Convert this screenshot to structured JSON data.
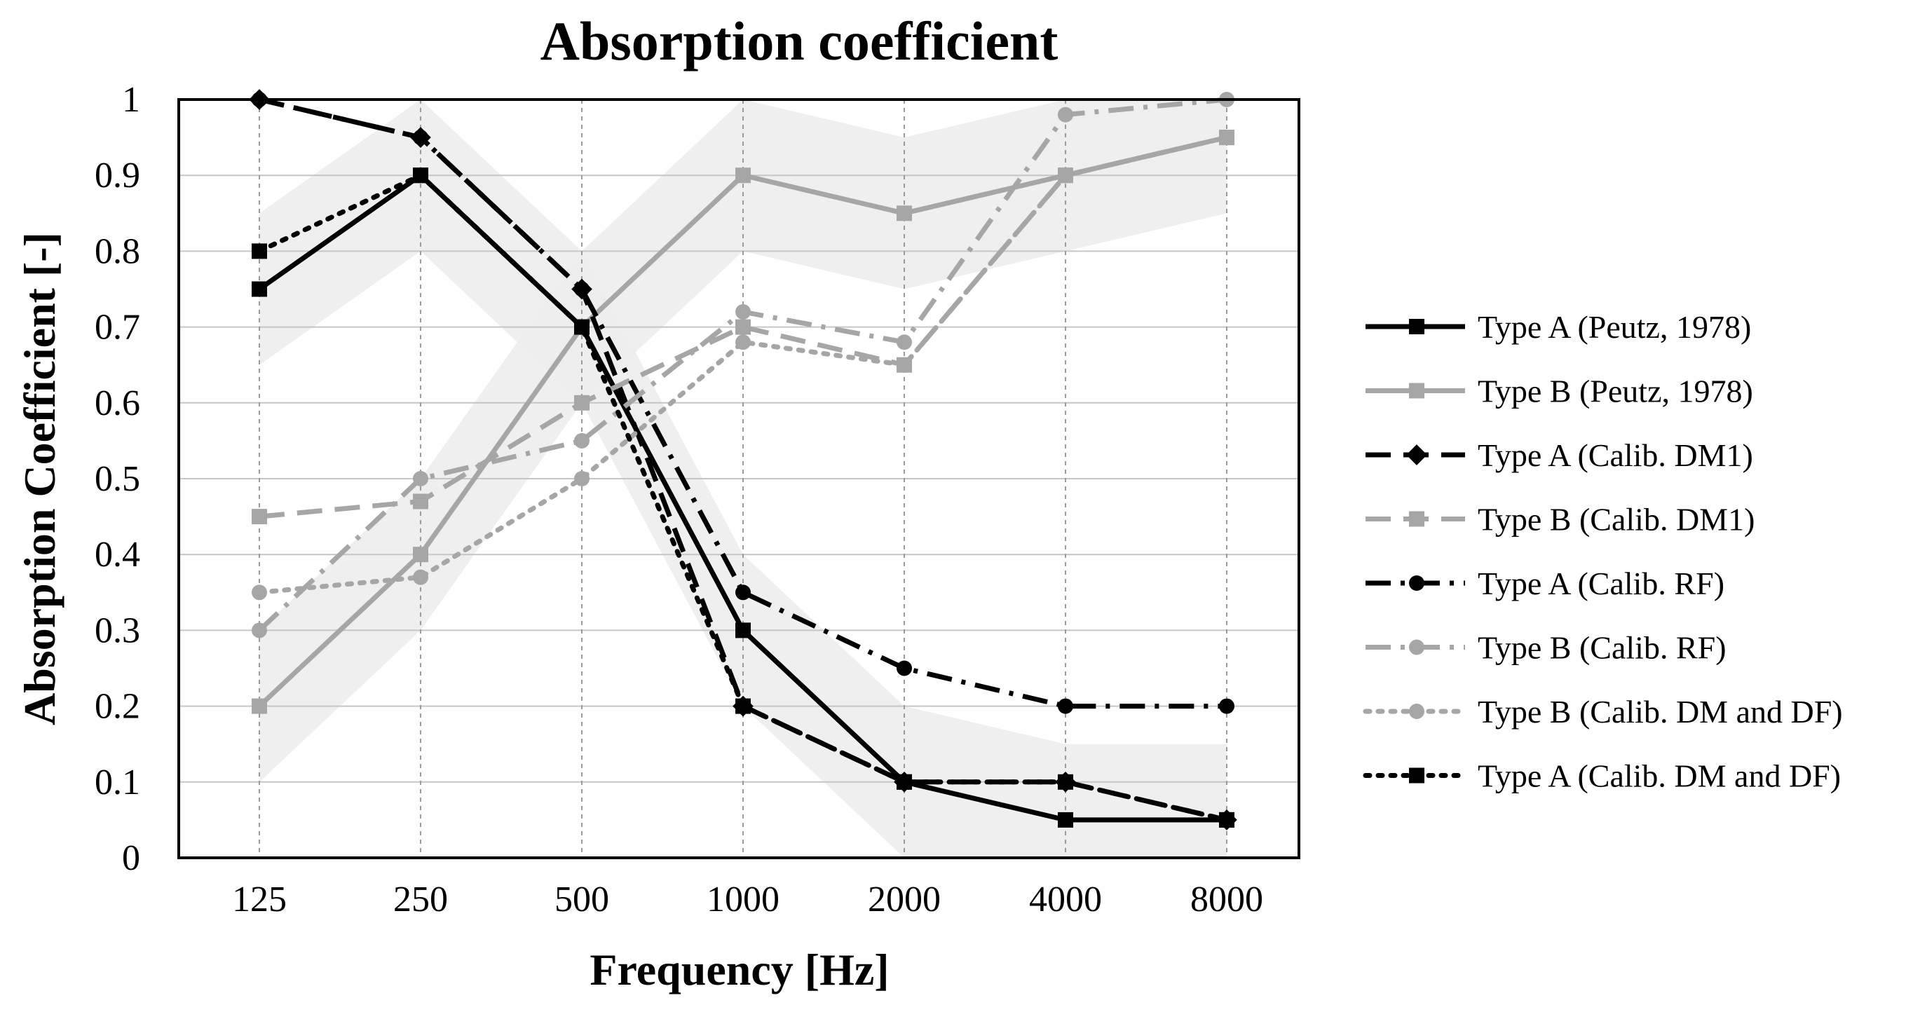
{
  "chart_data": {
    "type": "line",
    "title": "Absorption coefficient",
    "xlabel": "Frequency [Hz]",
    "ylabel": "Absorption Coefficient [-]",
    "categories": [
      "125",
      "250",
      "500",
      "1000",
      "2000",
      "4000",
      "8000"
    ],
    "ylim": [
      0,
      1
    ],
    "yticks": [
      "0",
      "0.1",
      "0.2",
      "0.3",
      "0.4",
      "0.5",
      "0.6",
      "0.7",
      "0.8",
      "0.9",
      "1"
    ],
    "grid": true,
    "legend_position": "right",
    "bands": [
      {
        "name": "Type A band",
        "lower": [
          0.65,
          0.8,
          0.6,
          0.2,
          0.0,
          0.0,
          0.0
        ],
        "upper": [
          0.85,
          1.0,
          0.8,
          0.4,
          0.2,
          0.15,
          0.15
        ],
        "color": "#ededed"
      },
      {
        "name": "Type B band",
        "lower": [
          0.1,
          0.3,
          0.6,
          0.8,
          0.75,
          0.8,
          0.85
        ],
        "upper": [
          0.3,
          0.5,
          0.8,
          1.0,
          0.95,
          1.0,
          1.0
        ],
        "color": "#ededed"
      }
    ],
    "series": [
      {
        "name": "Type A (Peutz, 1978)",
        "values": [
          0.75,
          0.9,
          0.7,
          0.3,
          0.1,
          0.05,
          0.05
        ],
        "color": "#000000",
        "dash": "solid",
        "marker": "square"
      },
      {
        "name": "Type B (Peutz, 1978)",
        "values": [
          0.2,
          0.4,
          0.7,
          0.9,
          0.85,
          0.9,
          0.95
        ],
        "color": "#a6a6a6",
        "dash": "solid",
        "marker": "square"
      },
      {
        "name": "Type A (Calib. DM1)",
        "values": [
          1.0,
          0.95,
          0.75,
          0.2,
          0.1,
          0.1,
          0.05
        ],
        "color": "#000000",
        "dash": "dash",
        "marker": "diamond"
      },
      {
        "name": "Type B (Calib. DM1)",
        "values": [
          0.45,
          0.47,
          0.6,
          0.7,
          0.65,
          0.9,
          0.95
        ],
        "color": "#a6a6a6",
        "dash": "dash",
        "marker": "square"
      },
      {
        "name": "Type A (Calib. RF)",
        "values": [
          1.0,
          0.95,
          0.75,
          0.35,
          0.25,
          0.2,
          0.2
        ],
        "color": "#000000",
        "dash": "dashdot",
        "marker": "circle"
      },
      {
        "name": "Type B (Calib. RF)",
        "values": [
          0.3,
          0.5,
          0.55,
          0.72,
          0.68,
          0.98,
          1.0
        ],
        "color": "#a6a6a6",
        "dash": "dashdot",
        "marker": "circle"
      },
      {
        "name": "Type B (Calib. DM and DF)",
        "values": [
          0.35,
          0.37,
          0.5,
          0.68,
          0.65,
          0.9,
          0.95
        ],
        "color": "#a6a6a6",
        "dash": "dot",
        "marker": "circle"
      },
      {
        "name": "Type A (Calib. DM and DF)",
        "values": [
          0.8,
          0.9,
          0.7,
          0.2,
          0.1,
          0.1,
          0.05
        ],
        "color": "#000000",
        "dash": "dot",
        "marker": "square"
      }
    ]
  }
}
